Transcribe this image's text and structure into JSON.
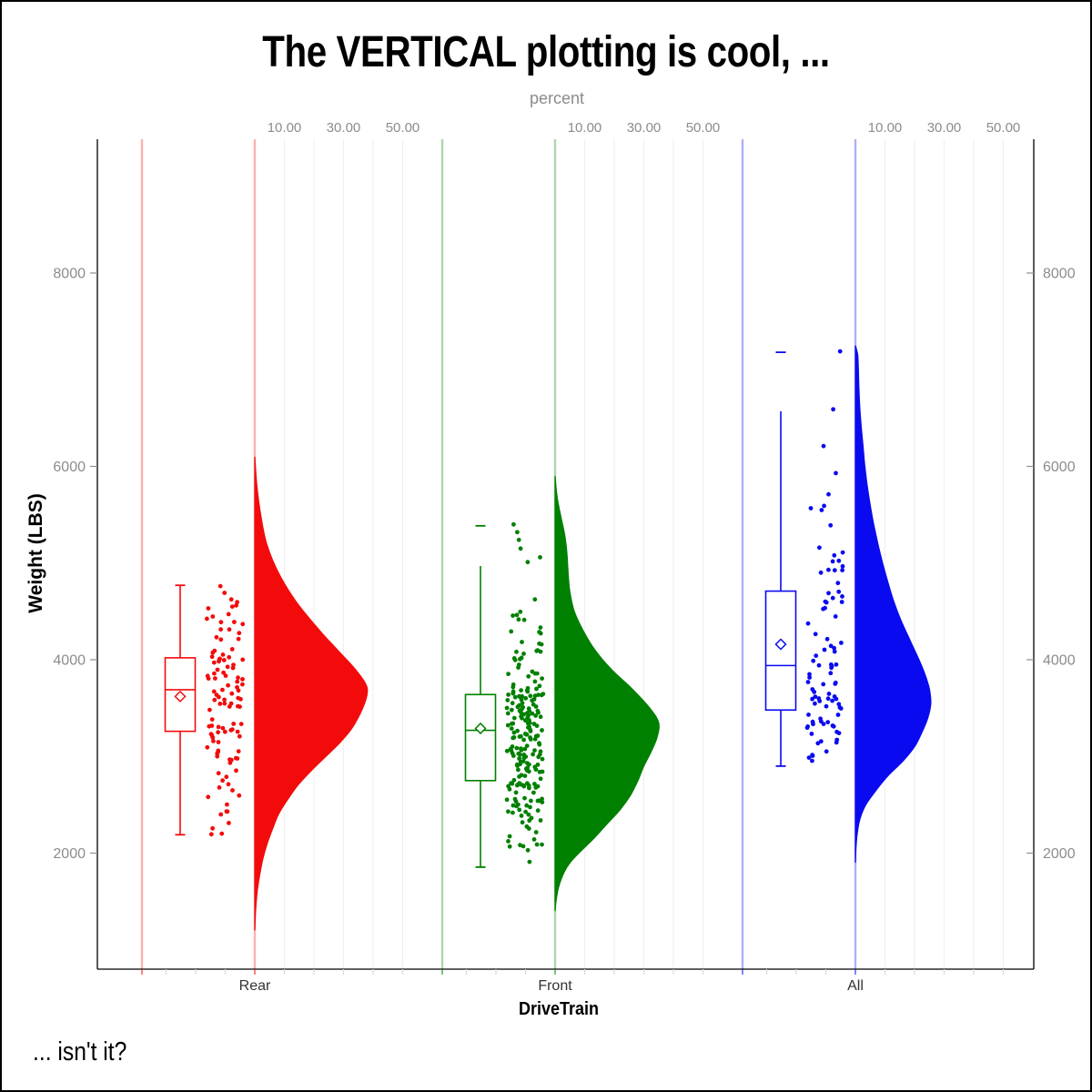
{
  "title": "The VERTICAL plotting is cool, ...",
  "footnote": "... isn't it?",
  "axes": {
    "top": {
      "label": "percent",
      "gridline_values": [
        10,
        20,
        30,
        40,
        50
      ],
      "labeled_values": [
        10,
        30,
        50
      ],
      "tick_labels": [
        "10.00",
        "30.00",
        "50.00"
      ]
    },
    "left": {
      "label": "Weight (LBS)",
      "tick_values": [
        2000,
        4000,
        6000,
        8000
      ],
      "tick_labels": [
        "2000",
        "4000",
        "6000",
        "8000"
      ]
    },
    "right": {
      "tick_values": [
        2000,
        4000,
        6000,
        8000
      ],
      "tick_labels": [
        "2000",
        "4000",
        "6000",
        "8000"
      ]
    },
    "bottom": {
      "label": "DriveTrain",
      "categories": [
        "Rear",
        "Front",
        "All"
      ]
    }
  },
  "chart_data": {
    "type": "raincloud",
    "description": "Vertical raincloud: box plot + jittered points + half-violin (density in percent) per DriveTrain group",
    "xlabel": "DriveTrain",
    "ylabel": "Weight (LBS)",
    "x2label": "percent",
    "ylim": [
      800,
      9400
    ],
    "percent_axis_lim": [
      0,
      60
    ],
    "grid": true,
    "jitter_seed": 42,
    "groups": [
      {
        "name": "Rear",
        "color": "#f30b0b",
        "n": 110,
        "box": {
          "q1": 3260,
          "median": 3690,
          "q3": 4020,
          "mean": 3620,
          "whisker_low": 2190,
          "whisker_high": 4770,
          "cap_low": true,
          "cap_high": true,
          "outliers": []
        },
        "violin_profile": [
          [
            6100,
            0
          ],
          [
            5800,
            0.7
          ],
          [
            5500,
            2
          ],
          [
            5200,
            4
          ],
          [
            4900,
            8
          ],
          [
            4600,
            14
          ],
          [
            4300,
            22
          ],
          [
            4100,
            28
          ],
          [
            3900,
            34
          ],
          [
            3750,
            37.5
          ],
          [
            3650,
            38
          ],
          [
            3500,
            36.5
          ],
          [
            3300,
            33
          ],
          [
            3150,
            29
          ],
          [
            3000,
            24
          ],
          [
            2850,
            19
          ],
          [
            2700,
            14.5
          ],
          [
            2550,
            11
          ],
          [
            2400,
            8
          ],
          [
            2250,
            6
          ],
          [
            2100,
            4.2
          ],
          [
            1950,
            2.8
          ],
          [
            1800,
            1.8
          ],
          [
            1650,
            1
          ],
          [
            1500,
            0.5
          ],
          [
            1350,
            0.2
          ],
          [
            1200,
            0
          ]
        ],
        "jitter_range": [
          2195,
          4780
        ],
        "jitter_extra_points": [
          2400,
          2195
        ]
      },
      {
        "name": "Front",
        "color": "#008000",
        "n": 226,
        "box": {
          "q1": 2750,
          "median": 3270,
          "q3": 3640,
          "mean": 3290,
          "whisker_low": 1855,
          "whisker_high": 4970,
          "cap_low": true,
          "cap_high": false,
          "outliers": [
            5385
          ]
        },
        "violin_profile": [
          [
            5900,
            0
          ],
          [
            5700,
            0.6
          ],
          [
            5500,
            1.8
          ],
          [
            5300,
            3.2
          ],
          [
            5100,
            4
          ],
          [
            4900,
            4.4
          ],
          [
            4700,
            5
          ],
          [
            4500,
            6.5
          ],
          [
            4300,
            9.5
          ],
          [
            4100,
            13.5
          ],
          [
            3900,
            19
          ],
          [
            3700,
            26
          ],
          [
            3500,
            32
          ],
          [
            3350,
            35
          ],
          [
            3200,
            34.5
          ],
          [
            3050,
            32.5
          ],
          [
            2900,
            30
          ],
          [
            2750,
            28
          ],
          [
            2600,
            25.5
          ],
          [
            2450,
            22
          ],
          [
            2300,
            17.5
          ],
          [
            2150,
            13
          ],
          [
            2000,
            8
          ],
          [
            1900,
            5
          ],
          [
            1800,
            3
          ],
          [
            1650,
            1.2
          ],
          [
            1500,
            0.3
          ],
          [
            1400,
            0
          ]
        ],
        "jitter_range": [
          1850,
          4670
        ],
        "jitter_extra_points": [
          5400,
          5320,
          5240,
          5150,
          5060,
          5010
        ]
      },
      {
        "name": "All",
        "color": "#0a0af0",
        "n": 92,
        "box": {
          "q1": 3480,
          "median": 3940,
          "q3": 4710,
          "mean": 4160,
          "whisker_low": 2900,
          "whisker_high": 6570,
          "cap_low": true,
          "cap_high": false,
          "outliers": [
            7180
          ]
        },
        "violin_profile": [
          [
            7250,
            0
          ],
          [
            7150,
            0.8
          ],
          [
            7000,
            1
          ],
          [
            6800,
            1.2
          ],
          [
            6600,
            1.5
          ],
          [
            6400,
            2
          ],
          [
            6200,
            2.6
          ],
          [
            6000,
            3.2
          ],
          [
            5800,
            4
          ],
          [
            5600,
            5
          ],
          [
            5400,
            6.2
          ],
          [
            5200,
            7.6
          ],
          [
            5000,
            9.2
          ],
          [
            4800,
            11
          ],
          [
            4600,
            13
          ],
          [
            4400,
            15.5
          ],
          [
            4200,
            18.5
          ],
          [
            4000,
            21.5
          ],
          [
            3850,
            23.5
          ],
          [
            3700,
            25
          ],
          [
            3550,
            25.5
          ],
          [
            3400,
            24.5
          ],
          [
            3250,
            22.5
          ],
          [
            3100,
            20
          ],
          [
            2950,
            16
          ],
          [
            2800,
            11
          ],
          [
            2650,
            7
          ],
          [
            2500,
            3.5
          ],
          [
            2350,
            1.5
          ],
          [
            2200,
            0.6
          ],
          [
            2050,
            0.2
          ],
          [
            1900,
            0
          ]
        ],
        "jitter_range": [
          2900,
          5800
        ],
        "jitter_extra_points": [
          7190,
          6590,
          6210,
          5930
        ]
      }
    ]
  },
  "style": {
    "background": "#ffffff",
    "frame_border": "#000000",
    "axis_line": "#000000",
    "gridline": "#efefef",
    "tick_mark": "#8f8f8f",
    "tick_label": "#8c8c8c",
    "category_label": "#333333",
    "guide_line_opacity": 0.32
  }
}
